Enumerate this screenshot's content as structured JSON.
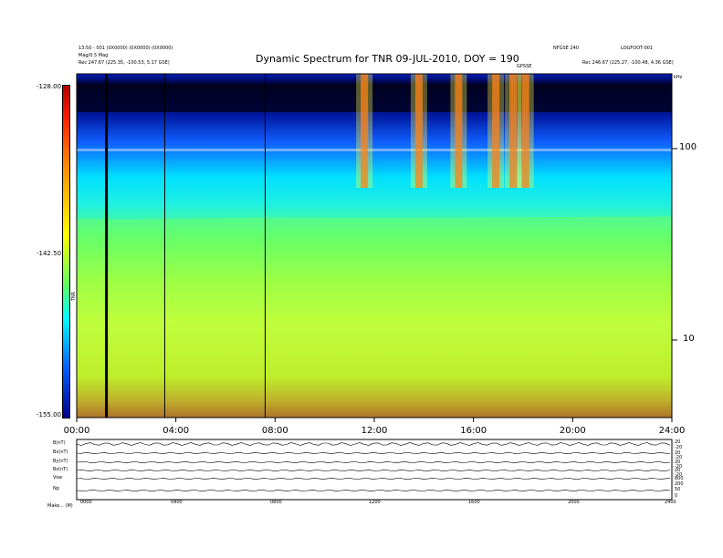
{
  "chart_data": {
    "type": "heatmap",
    "title": "Dynamic Spectrum for TNR 09-JUL-2010, DOY = 190",
    "header_left": [
      "13:50 - 001 (0X0000) (0X0000) (0X0000)",
      "Mag/0.5 Mag",
      "Rec    247.67 (225.35, -100.53, 5.17 GSE)"
    ],
    "header_right": [
      "NFGSE 240",
      "LOGFOOT-001",
      "Rec    246.67 (225.27, -100.48, 4.36 GSE)"
    ],
    "marker_label": "GPSSE",
    "colorbar": {
      "label": "TNR",
      "ticks": [
        "-128.00",
        "-142.50",
        "-155.00"
      ],
      "range": [
        -155,
        -128
      ]
    },
    "y_axis": {
      "scale": "log",
      "ticks": [
        "100",
        "10"
      ],
      "unit": "kHz"
    },
    "x_axis": {
      "ticks": [
        "00:00",
        "04:00",
        "08:00",
        "12:00",
        "16:00",
        "20:00",
        "24:00"
      ],
      "range_hours": [
        0,
        24
      ]
    },
    "vertical_markers_hours": [
      1.2,
      3.55,
      7.6
    ],
    "intensity_profile": [
      {
        "time_hours": 0,
        "low_band_db": -141.0
      },
      {
        "time_hours": 2,
        "low_band_db": -140.5
      },
      {
        "time_hours": 4,
        "low_band_db": -141.0
      },
      {
        "time_hours": 6,
        "low_band_db": -141.5
      },
      {
        "time_hours": 8,
        "low_band_db": -142.0
      },
      {
        "time_hours": 12,
        "low_band_db": -141.5
      },
      {
        "time_hours": 16,
        "low_band_db": -142.0
      },
      {
        "time_hours": 20,
        "low_band_db": -142.5
      },
      {
        "time_hours": 24,
        "low_band_db": -143.0
      }
    ],
    "bursts_hours": [
      11.6,
      13.8,
      15.4,
      16.9,
      17.6,
      18.1
    ]
  },
  "panels": [
    {
      "label": "B(nT)",
      "right_ticks": [
        "20",
        "-20"
      ]
    },
    {
      "label": "Bx(nT)",
      "right_ticks": [
        "20",
        "-20"
      ]
    },
    {
      "label": "By(nT)",
      "right_ticks": [
        "20",
        "-20"
      ]
    },
    {
      "label": "Bz(nT)",
      "right_ticks": [
        "20",
        "-20"
      ]
    },
    {
      "label": "Vsw",
      "right_ticks": [
        "800",
        "200"
      ]
    },
    {
      "label": "Np",
      "right_ticks": [
        "50",
        "0"
      ]
    }
  ],
  "bottom_ticks": [
    "0000",
    "0400",
    "0800",
    "1200",
    "1600",
    "2000",
    "2400"
  ],
  "footer": "Make... (M)"
}
